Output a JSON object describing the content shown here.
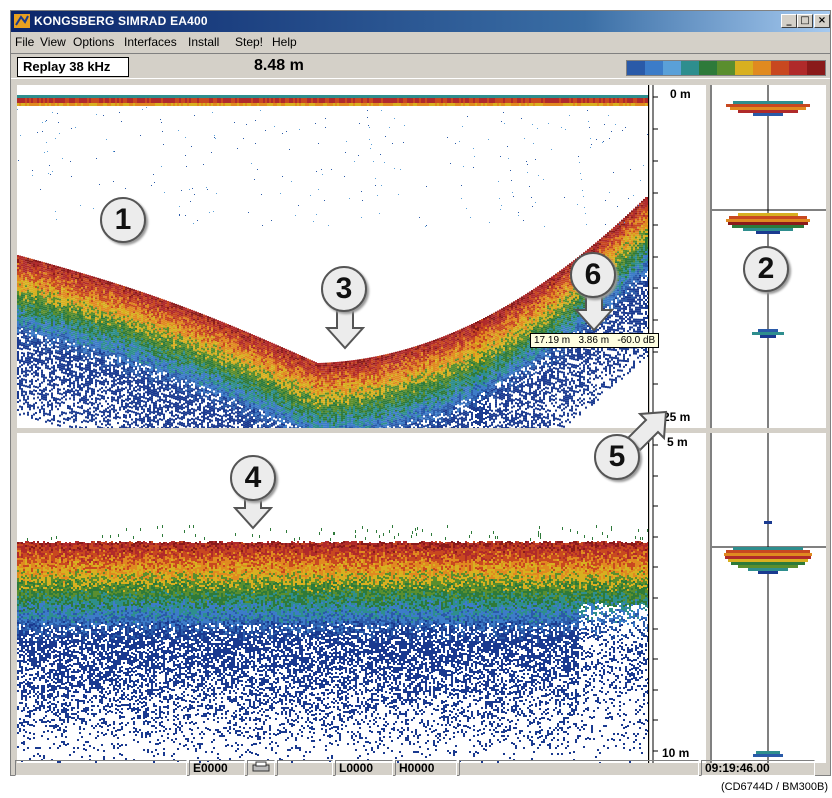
{
  "window": {
    "title": "KONGSBERG SIMRAD EA400",
    "controls": {
      "minimize": "_",
      "maximize": "□",
      "close": "×"
    }
  },
  "menu": [
    "File",
    "View",
    "Options",
    "Interfaces",
    "Install",
    "Step!",
    "Help"
  ],
  "toolbar": {
    "mode": "Replay 38 kHz",
    "depth": "8.48 m",
    "palette": [
      "#2a5aa8",
      "#3c7cc8",
      "#5aa0d8",
      "#2e8e8e",
      "#2e7a3a",
      "#5a8e2e",
      "#d8b020",
      "#e08a20",
      "#c84820",
      "#b02a2a",
      "#8a1a1a"
    ]
  },
  "scales": {
    "top_start": "0 m",
    "top_end": "25 m",
    "bottom_start": "5 m",
    "bottom_end": "10 m"
  },
  "tooltip": "17.19 m   3.86 m   -60.0 dB",
  "callouts": [
    "1",
    "2",
    "3",
    "4",
    "5",
    "6"
  ],
  "status": {
    "e_field": "E0000",
    "l_field": "L0000",
    "h_field": "H0000",
    "time": "09:19:46.00"
  },
  "caption": "(CD6744D / BM300B)",
  "icons": {
    "printer": "printer-icon",
    "app": "app-icon"
  }
}
